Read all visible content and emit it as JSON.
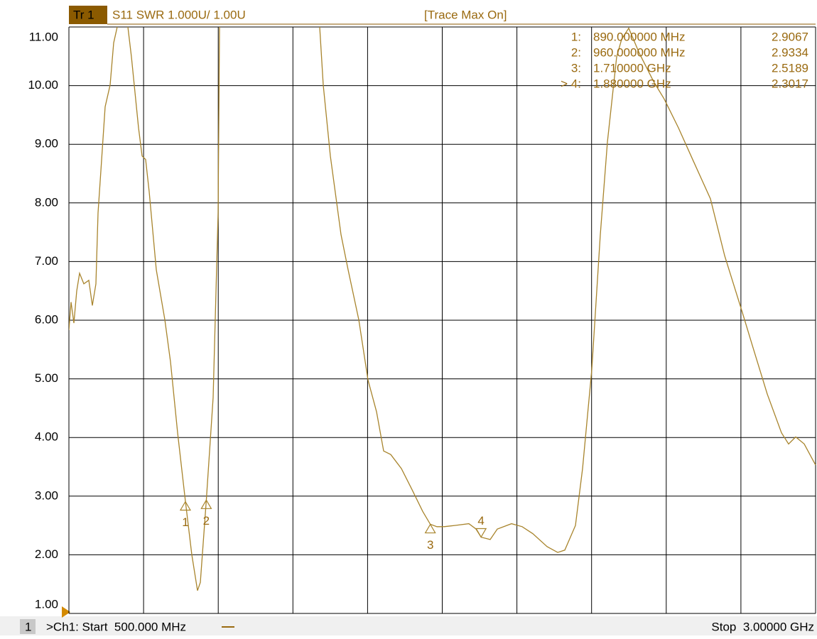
{
  "header": {
    "trace": "Tr 1",
    "description": "S11 SWR 1.000U/ 1.00U",
    "status": "[Trace Max On]"
  },
  "chart_data": {
    "type": "line",
    "xlim": [
      500,
      3000
    ],
    "xticks": [
      500,
      750,
      1000,
      1250,
      1500,
      1750,
      2000,
      2250,
      2500,
      2750,
      3000
    ],
    "ylim": [
      1,
      11
    ],
    "yticks": [
      {
        "value": 1,
        "label": "1.00"
      },
      {
        "value": 2,
        "label": "2.00"
      },
      {
        "value": 3,
        "label": "3.00"
      },
      {
        "value": 4,
        "label": "4.00"
      },
      {
        "value": 5,
        "label": "5.00"
      },
      {
        "value": 6,
        "label": "6.00"
      },
      {
        "value": 7,
        "label": "7.00"
      },
      {
        "value": 8,
        "label": "8.00"
      },
      {
        "value": 9,
        "label": "9.00"
      },
      {
        "value": 10,
        "label": "10.00"
      },
      {
        "value": 11,
        "label": "11.00"
      }
    ],
    "grid": true,
    "series": [
      {
        "color": "#a8842c",
        "x": [
          500,
          507.1,
          516.6,
          526.2,
          535.7,
          550.0,
          566.6,
          578.5,
          590.4,
          597.5,
          607.0,
          621.3,
          638.0,
          649.9,
          661.8,
          678.4,
          697.4,
          709.3,
          733.1,
          745.0,
          756.9,
          768.8,
          792.6,
          821.1,
          840.2,
          864.0,
          890,
          911.5,
          930.5,
          940.1,
          960,
          982.9,
          999.6,
          1004.3,
          1011.4,
          1327.8,
          1339.7,
          1351.6,
          1375.4,
          1411.0,
          1434.8,
          1470.5,
          1501.4,
          1530.0,
          1553.8,
          1577.5,
          1613.2,
          1648.9,
          1684.6,
          1710,
          1732.2,
          1756.0,
          1791.6,
          1839.2,
          1863.0,
          1880,
          1910.6,
          1934.4,
          1982.0,
          2017.6,
          2053.3,
          2100.9,
          2136.5,
          2160.3,
          2196.0,
          2219.8,
          2250.7,
          2279.3,
          2303.0,
          2334.0,
          2350.6,
          2374.4,
          2410.1,
          2457.7,
          2493.4,
          2540.9,
          2588.5,
          2648.0,
          2695.6,
          2755.0,
          2790.7,
          2838.3,
          2885.9,
          2909.6,
          2933.4,
          2962.0,
          3000
        ],
        "values": [
          5.83,
          6.31,
          5.95,
          6.5,
          6.8,
          6.62,
          6.68,
          6.25,
          6.62,
          7.83,
          8.55,
          9.64,
          10.01,
          10.73,
          11.0,
          11.22,
          11.0,
          10.49,
          9.28,
          8.8,
          8.74,
          8.19,
          6.86,
          6.01,
          5.29,
          4.08,
          2.91,
          2.0,
          1.39,
          1.53,
          2.93,
          4.68,
          7.83,
          11.0,
          11.22,
          11.22,
          11.0,
          10.01,
          8.8,
          7.46,
          6.86,
          6.01,
          4.98,
          4.44,
          3.77,
          3.71,
          3.47,
          3.11,
          2.74,
          2.52,
          2.48,
          2.48,
          2.5,
          2.53,
          2.44,
          2.3,
          2.26,
          2.44,
          2.53,
          2.48,
          2.36,
          2.14,
          2.04,
          2.08,
          2.5,
          3.47,
          5.16,
          7.46,
          9.04,
          10.49,
          10.79,
          10.98,
          10.55,
          10.07,
          9.77,
          9.28,
          8.74,
          8.07,
          7.1,
          6.13,
          5.53,
          4.74,
          4.08,
          3.89,
          4.01,
          3.89,
          3.53
        ]
      }
    ],
    "markers": [
      {
        "label": "1",
        "x": 890,
        "value": 2.9067,
        "readout_label": "1:",
        "frequency": "890.000000 MHz",
        "active": false
      },
      {
        "label": "2",
        "x": 960,
        "value": 2.9334,
        "readout_label": "2:",
        "frequency": "960.000000 MHz",
        "active": false
      },
      {
        "label": "3",
        "x": 1710,
        "value": 2.5189,
        "readout_label": "3:",
        "frequency": "1.710000 GHz",
        "active": false
      },
      {
        "label": "4",
        "x": 1880,
        "value": 2.3017,
        "readout_label": "> 4:",
        "frequency": "1.880000 GHz",
        "active": true
      }
    ]
  },
  "footer": {
    "channel": "1",
    "start": ">Ch1: Start  500.000 MHz",
    "stop": "Stop  3.00000 GHz"
  }
}
